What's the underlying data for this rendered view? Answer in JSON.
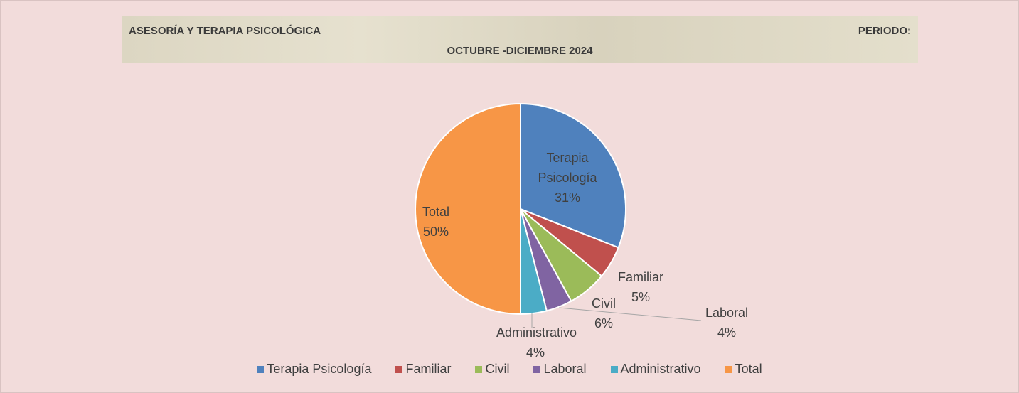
{
  "chart_data": {
    "type": "pie",
    "title": "ASESORÍA Y TERAPIA PSICOLÓGICA",
    "period_label": "PERIODO:",
    "subtitle": "OCTUBRE -DICIEMBRE 2024",
    "categories": [
      "Terapia Psicología",
      "Familiar",
      "Civil",
      "Laboral",
      "Administrativo",
      "Total"
    ],
    "values": [
      31,
      5,
      6,
      4,
      4,
      50
    ],
    "value_labels": [
      "31%",
      "5%",
      "6%",
      "4%",
      "4%",
      "50%"
    ],
    "colors": [
      "#4f81bd",
      "#c0504d",
      "#9bbb59",
      "#8064a2",
      "#4bacc6",
      "#f79646"
    ],
    "legend": "bottom"
  }
}
